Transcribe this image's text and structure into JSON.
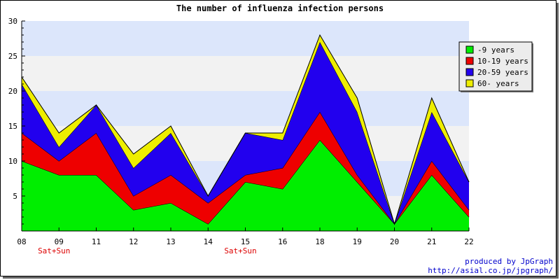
{
  "chart_data": {
    "type": "area",
    "stacked": true,
    "title": "The number of influenza infection persons",
    "x": [
      "08",
      "09",
      "11",
      "12",
      "13",
      "14",
      "15",
      "16",
      "18",
      "19",
      "20",
      "21",
      "22"
    ],
    "x_annotations": [
      {
        "category": "09",
        "text": "Sat+Sun"
      },
      {
        "category": "15",
        "text": "Sat+Sun"
      }
    ],
    "ylim": [
      0,
      30
    ],
    "yticks": [
      5,
      10,
      15,
      20,
      25,
      30
    ],
    "grid": "horizontal bands",
    "band_colors": [
      "#f2f2f2",
      "#dce6fb"
    ],
    "legend_position": "right",
    "series": [
      {
        "name": "-9 years",
        "color": "#00ee00",
        "values": [
          10,
          8,
          8,
          3,
          4,
          1,
          7,
          6,
          13,
          7,
          1,
          8,
          2
        ]
      },
      {
        "name": "10-19 years",
        "color": "#ee0000",
        "values": [
          4,
          2,
          6,
          2,
          4,
          3,
          1,
          3,
          4,
          1,
          0,
          2,
          1
        ]
      },
      {
        "name": "20-59 years",
        "color": "#2200ee",
        "values": [
          7,
          2,
          4,
          4,
          6,
          1,
          6,
          4,
          10,
          9,
          0,
          7,
          4
        ]
      },
      {
        "name": "60- years",
        "color": "#eeee00",
        "values": [
          1,
          2,
          0,
          2,
          1,
          0,
          0,
          1,
          1,
          2,
          0,
          2,
          0
        ]
      }
    ]
  },
  "footer": {
    "line1": "produced by JpGraph",
    "line2": "http://asial.co.jp/jpgraph/"
  }
}
